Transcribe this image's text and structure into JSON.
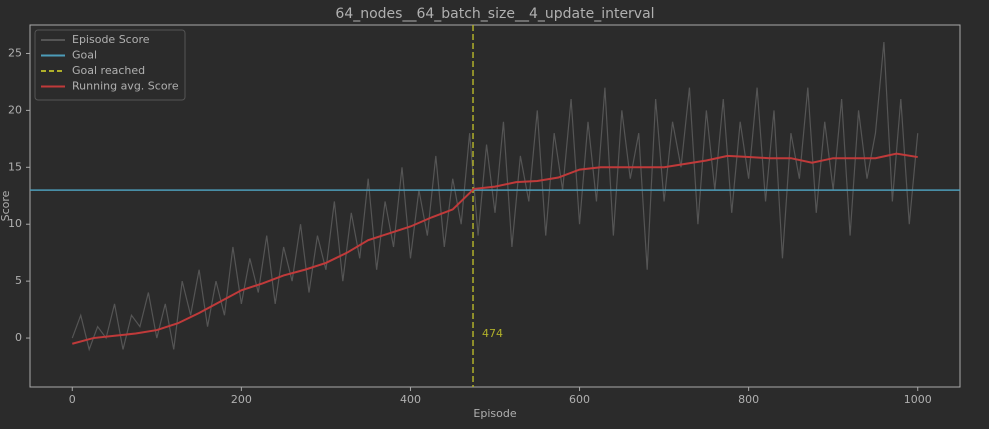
{
  "chart_data": {
    "type": "line",
    "title": "64_nodes__64_batch_size__4_update_interval",
    "xlabel": "Episode",
    "ylabel": "Score",
    "xlim": [
      -50,
      1050
    ],
    "ylim": [
      -4.3,
      27.5
    ],
    "xticks": [
      0,
      200,
      400,
      600,
      800,
      1000
    ],
    "yticks": [
      0,
      5,
      10,
      15,
      20,
      25
    ],
    "legend": "upper left",
    "series": [
      {
        "name": "Episode Score",
        "color": "#555555",
        "x": [
          0,
          10,
          20,
          30,
          40,
          50,
          60,
          70,
          80,
          90,
          100,
          110,
          120,
          130,
          140,
          150,
          160,
          170,
          180,
          190,
          200,
          210,
          220,
          230,
          240,
          250,
          260,
          270,
          280,
          290,
          300,
          310,
          320,
          330,
          340,
          350,
          360,
          370,
          380,
          390,
          400,
          410,
          420,
          430,
          440,
          450,
          460,
          470,
          480,
          490,
          500,
          510,
          520,
          530,
          540,
          550,
          560,
          570,
          580,
          590,
          600,
          610,
          620,
          630,
          640,
          650,
          660,
          670,
          680,
          690,
          700,
          710,
          720,
          730,
          740,
          750,
          760,
          770,
          780,
          790,
          800,
          810,
          820,
          830,
          840,
          850,
          860,
          870,
          880,
          890,
          900,
          910,
          920,
          930,
          940,
          950,
          960,
          970,
          980,
          990,
          1000
        ],
        "values": [
          0,
          2,
          -1,
          1,
          0,
          3,
          -1,
          2,
          1,
          4,
          0,
          3,
          -1,
          5,
          2,
          6,
          1,
          5,
          2,
          8,
          3,
          7,
          4,
          9,
          3,
          8,
          5,
          10,
          4,
          9,
          6,
          12,
          5,
          11,
          7,
          14,
          6,
          12,
          8,
          15,
          7,
          13,
          9,
          16,
          8,
          14,
          10,
          18,
          9,
          17,
          11,
          19,
          8,
          16,
          12,
          20,
          9,
          18,
          13,
          21,
          10,
          19,
          12,
          22,
          9,
          20,
          14,
          18,
          6,
          21,
          12,
          19,
          15,
          22,
          10,
          20,
          13,
          21,
          11,
          19,
          14,
          22,
          12,
          20,
          7,
          18,
          14,
          22,
          11,
          19,
          13,
          21,
          9,
          20,
          14,
          18,
          26,
          12,
          21,
          10,
          18
        ]
      },
      {
        "name": "Goal",
        "color": "#4c9cb9",
        "orientation": "horizontal",
        "value": 13
      },
      {
        "name": "Goal reached",
        "color": "#b0b02a",
        "orientation": "vertical",
        "linestyle": "dashed",
        "value": 474
      },
      {
        "name": "Running avg. Score",
        "color": "#c03a3a",
        "x": [
          0,
          25,
          50,
          75,
          100,
          125,
          150,
          175,
          200,
          225,
          250,
          275,
          300,
          325,
          350,
          375,
          400,
          425,
          450,
          475,
          500,
          525,
          550,
          575,
          600,
          625,
          650,
          675,
          700,
          725,
          750,
          775,
          800,
          825,
          850,
          875,
          900,
          925,
          950,
          975,
          1000
        ],
        "values": [
          -0.5,
          0,
          0.2,
          0.4,
          0.7,
          1.3,
          2.2,
          3.2,
          4.2,
          4.8,
          5.5,
          6,
          6.6,
          7.5,
          8.6,
          9.2,
          9.8,
          10.6,
          11.3,
          13.1,
          13.3,
          13.7,
          13.8,
          14.1,
          14.8,
          15,
          15,
          15,
          15,
          15.3,
          15.6,
          16,
          15.9,
          15.8,
          15.8,
          15.4,
          15.8,
          15.8,
          15.8,
          16.2,
          15.9
        ]
      }
    ]
  }
}
